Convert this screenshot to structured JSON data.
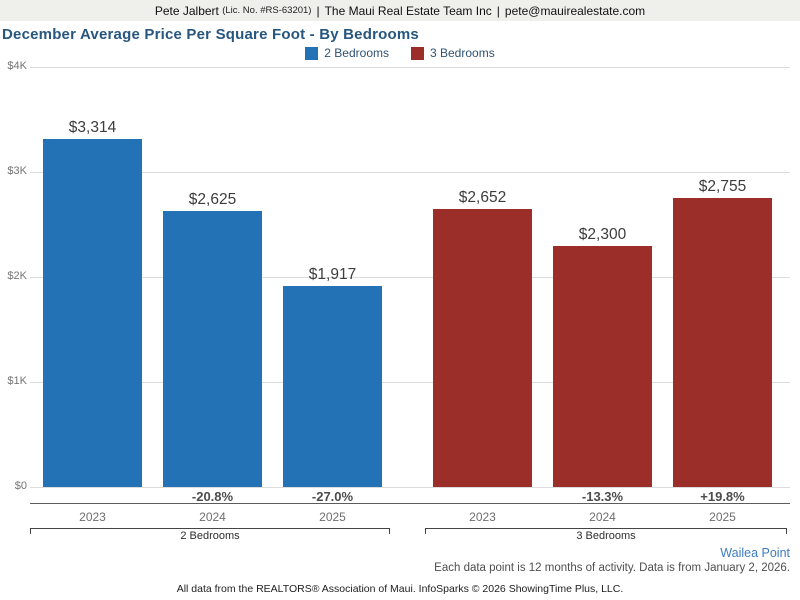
{
  "header": {
    "agent": "Pete Jalbert",
    "license": "(Lic. No. #RS-63201)",
    "separator": "|",
    "company": "The Maui Real Estate Team Inc",
    "email": "pete@mauirealestate.com"
  },
  "title": "December Average Price Per Square Foot - By Bedrooms",
  "legend": [
    {
      "label": "2 Bedrooms",
      "color": "#2272b5"
    },
    {
      "label": "3 Bedrooms",
      "color": "#9c2e2a"
    }
  ],
  "colors": {
    "series_2br": "#2272b5",
    "series_3br": "#9c2e2a",
    "title": "#27567f",
    "link": "#3e7cc0"
  },
  "chart_data": {
    "type": "bar",
    "title": "December Average Price Per Square Foot - By Bedrooms",
    "xlabel": "",
    "ylabel": "",
    "ylim": [
      0,
      4000
    ],
    "grid": true,
    "legend_position": "top",
    "yticks": [
      {
        "value": 0,
        "label": "$0"
      },
      {
        "value": 1000,
        "label": "$1K"
      },
      {
        "value": 2000,
        "label": "$2K"
      },
      {
        "value": 3000,
        "label": "$3K"
      },
      {
        "value": 4000,
        "label": "$4K"
      }
    ],
    "groups": [
      {
        "name": "2 Bedrooms",
        "color": "#2272b5",
        "categories": [
          "2023",
          "2024",
          "2025"
        ],
        "values": [
          3314,
          2625,
          1917
        ],
        "value_labels": [
          "$3,314",
          "$2,625",
          "$1,917"
        ],
        "pct_change": [
          "",
          "-20.8%",
          "-27.0%"
        ]
      },
      {
        "name": "3 Bedrooms",
        "color": "#9c2e2a",
        "categories": [
          "2023",
          "2024",
          "2025"
        ],
        "values": [
          2652,
          2300,
          2755
        ],
        "value_labels": [
          "$2,652",
          "$2,300",
          "$2,755"
        ],
        "pct_change": [
          "",
          "-13.3%",
          "+19.8%"
        ]
      }
    ]
  },
  "footer": {
    "location_link": "Wailea Point",
    "note": "Each data point is 12 months of activity. Data is from January 2, 2026.",
    "attribution": "All data from the REALTORS® Association of Maui. InfoSparks © 2026 ShowingTime Plus, LLC."
  }
}
